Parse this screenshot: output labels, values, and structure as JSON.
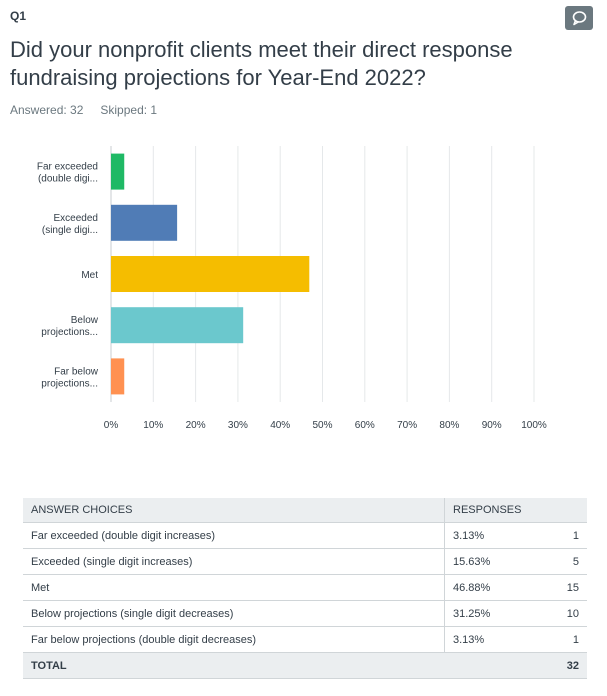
{
  "question": {
    "number": "Q1",
    "title": "Did your nonprofit clients meet their direct response fundraising projections for Year-End 2022?",
    "answered": "Answered: 32",
    "skipped": "Skipped: 1"
  },
  "icons": {
    "comment": "comment-bubble-icon"
  },
  "colors": {
    "bars": [
      "#1fb965",
      "#507cb6",
      "#f5bd00",
      "#6bc8cd",
      "#ff9151"
    ],
    "grid": "#e5e8ea",
    "comment_button": "#6b787f"
  },
  "chart_data": {
    "type": "bar",
    "orientation": "horizontal",
    "categories": [
      [
        "Far exceeded",
        "(double digi..."
      ],
      [
        "Exceeded",
        "(single digi..."
      ],
      [
        "Met"
      ],
      [
        "Below",
        "projections..."
      ],
      [
        "Far below",
        "projections..."
      ]
    ],
    "values": [
      3.13,
      15.63,
      46.88,
      31.25,
      3.13
    ],
    "xlim": [
      0,
      100
    ],
    "xticks": [
      "0%",
      "10%",
      "20%",
      "30%",
      "40%",
      "50%",
      "60%",
      "70%",
      "80%",
      "90%",
      "100%"
    ],
    "grid": true
  },
  "table": {
    "headers": [
      "ANSWER CHOICES",
      "RESPONSES"
    ],
    "rows": [
      {
        "choice": "Far exceeded (double digit increases)",
        "percent": "3.13%",
        "count": "1"
      },
      {
        "choice": "Exceeded (single digit increases)",
        "percent": "15.63%",
        "count": "5"
      },
      {
        "choice": "Met",
        "percent": "46.88%",
        "count": "15"
      },
      {
        "choice": "Below projections (single digit decreases)",
        "percent": "31.25%",
        "count": "10"
      },
      {
        "choice": "Far below projections (double digit decreases)",
        "percent": "3.13%",
        "count": "1"
      }
    ],
    "total_label": "TOTAL",
    "total_count": "32"
  }
}
